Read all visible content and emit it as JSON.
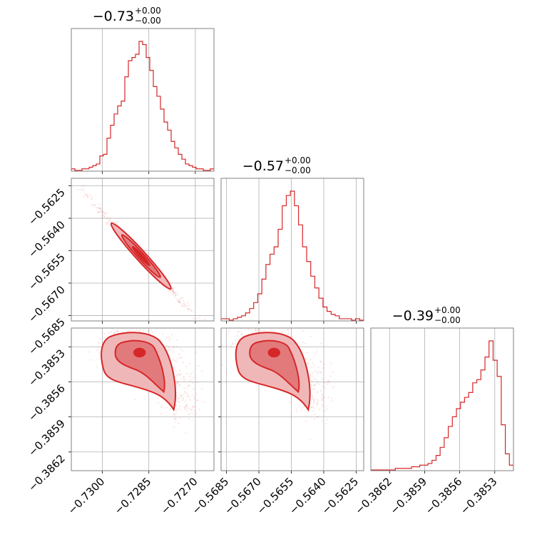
{
  "colors": {
    "series": "#d62728",
    "fill_light": "#f0b7b8",
    "fill_mid": "#e27a7c",
    "grid": "#b0b0b0",
    "frame": "#808080"
  },
  "chart_data": {
    "type": "corner",
    "grid": true,
    "variables": [
      {
        "title": "−0.73",
        "err_plus": "+0.00",
        "err_minus": "−0.00",
        "range": [
          -0.731,
          -0.7264
        ],
        "ticks": [
          -0.73,
          -0.7285,
          -0.727
        ],
        "tick_labels": [
          "−0.7300",
          "−0.7285",
          "−0.7270"
        ],
        "hist": [
          1,
          0,
          0,
          1,
          1,
          2,
          3,
          4,
          9,
          10,
          20,
          28,
          35,
          40,
          43,
          58,
          68,
          70,
          72,
          80,
          78,
          70,
          62,
          52,
          46,
          38,
          30,
          25,
          18,
          14,
          10,
          7,
          4,
          3,
          2,
          1,
          1,
          0,
          0,
          1
        ]
      },
      {
        "title": "−0.57",
        "err_plus": "+0.00",
        "err_minus": "−0.00",
        "range": [
          -0.56875,
          -0.56215
        ],
        "ticks": [
          -0.5685,
          -0.567,
          -0.5655,
          -0.564,
          -0.5625
        ],
        "tick_labels": [
          "−0.5685",
          "−0.5670",
          "−0.5655",
          "−0.5640",
          "−0.5625"
        ],
        "hist": [
          1,
          1,
          0,
          1,
          2,
          3,
          5,
          8,
          12,
          18,
          28,
          38,
          45,
          50,
          62,
          78,
          85,
          88,
          78,
          65,
          50,
          40,
          30,
          22,
          15,
          9,
          6,
          4,
          3,
          1,
          1,
          1,
          0,
          1,
          0
        ]
      },
      {
        "title": "−0.39",
        "err_plus": "+0.00",
        "err_minus": "−0.00",
        "range": [
          -0.38636,
          -0.38514
        ],
        "ticks": [
          -0.3862,
          -0.3859,
          -0.3856,
          -0.3853
        ],
        "tick_labels": [
          "−0.3862",
          "−0.3859",
          "−0.3856",
          "−0.3853"
        ],
        "hist": [
          0,
          0,
          0,
          0,
          0,
          0,
          1,
          1,
          1,
          1,
          2,
          2,
          3,
          3,
          4,
          6,
          9,
          14,
          20,
          27,
          33,
          38,
          42,
          45,
          48,
          54,
          56,
          62,
          70,
          80,
          68,
          58,
          28,
          10,
          3
        ]
      }
    ],
    "pairs": [
      {
        "x_var": 0,
        "y_var": 1,
        "center": [
          -0.72875,
          -0.56575
        ],
        "spread_major": 0.00095,
        "spread_minor": 4e-05,
        "corr_slope": -1.58
      },
      {
        "x_var": 0,
        "y_var": 2,
        "center": [
          -0.7288,
          -0.38535
        ],
        "shape": "banana"
      },
      {
        "x_var": 1,
        "y_var": 2,
        "center": [
          -0.5663,
          -0.38535
        ],
        "shape": "banana"
      }
    ]
  }
}
